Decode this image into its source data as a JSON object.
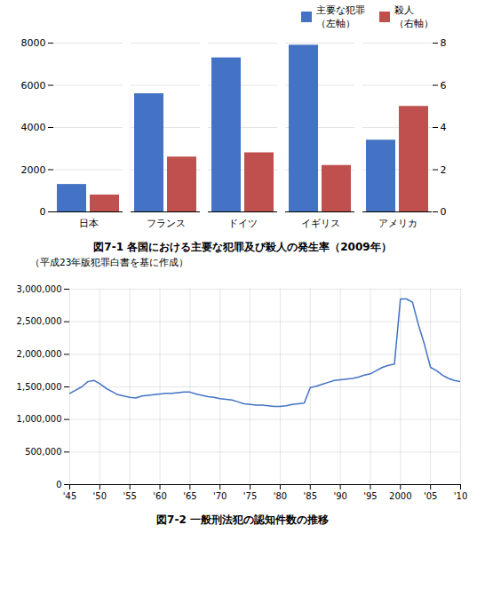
{
  "chart_data": [
    {
      "type": "bar",
      "title": "図7-1  各国における主要な犯罪及び殺人の発生率（2009年）",
      "subtitle": "（平成23年版犯罪白書を基に作成）",
      "categories": [
        "日本",
        "フランス",
        "ドイツ",
        "イギリス",
        "アメリカ"
      ],
      "series": [
        {
          "name": "主要な犯罪\n（左軸）",
          "color": "#4472C4",
          "values": [
            1300,
            5600,
            7300,
            7900,
            3400
          ]
        },
        {
          "name": "殺人\n（右軸）",
          "color": "#C0504D",
          "values": [
            0.8,
            2.6,
            2.8,
            2.2,
            5.0
          ],
          "axis": "y2"
        }
      ],
      "ylim": [
        0,
        8000
      ],
      "yticks": [
        0,
        2000,
        4000,
        6000,
        8000
      ],
      "y2lim": [
        0,
        8
      ],
      "y2ticks": [
        0,
        2,
        4,
        6,
        8
      ],
      "grid": true,
      "legend": "upper right"
    },
    {
      "type": "line",
      "title": "図7-2  一般刑法犯の認知件数の推移",
      "x": [
        1945,
        1946,
        1947,
        1948,
        1949,
        1950,
        1951,
        1952,
        1953,
        1954,
        1955,
        1956,
        1957,
        1958,
        1959,
        1960,
        1961,
        1962,
        1963,
        1964,
        1965,
        1966,
        1967,
        1968,
        1969,
        1970,
        1971,
        1972,
        1973,
        1974,
        1975,
        1976,
        1977,
        1978,
        1979,
        1980,
        1981,
        1982,
        1983,
        1984,
        1985,
        1986,
        1987,
        1988,
        1989,
        1990,
        1991,
        1992,
        1993,
        1994,
        1995,
        1996,
        1997,
        1998,
        1999,
        2000,
        2001,
        2002,
        2003,
        2004,
        2005,
        2006,
        2007,
        2008,
        2009,
        2010
      ],
      "values": [
        1400000,
        1450000,
        1500000,
        1580000,
        1600000,
        1550000,
        1480000,
        1430000,
        1380000,
        1360000,
        1340000,
        1330000,
        1360000,
        1370000,
        1380000,
        1390000,
        1400000,
        1400000,
        1410000,
        1420000,
        1420000,
        1390000,
        1370000,
        1350000,
        1340000,
        1320000,
        1310000,
        1300000,
        1270000,
        1240000,
        1230000,
        1220000,
        1220000,
        1210000,
        1200000,
        1200000,
        1210000,
        1230000,
        1240000,
        1250000,
        1490000,
        1510000,
        1540000,
        1570000,
        1600000,
        1610000,
        1620000,
        1630000,
        1650000,
        1680000,
        1700000,
        1750000,
        1800000,
        1830000,
        1850000,
        2850000,
        2850000,
        2800000,
        2450000,
        2150000,
        1800000,
        1750000,
        1680000,
        1630000,
        1600000,
        1580000
      ],
      "color": "#4472C4",
      "xlim": [
        1945,
        2010
      ],
      "xticks": [
        {
          "value": 1945,
          "label": "'45"
        },
        {
          "value": 1950,
          "label": "'50"
        },
        {
          "value": 1955,
          "label": "'55"
        },
        {
          "value": 1960,
          "label": "'60"
        },
        {
          "value": 1965,
          "label": "'65"
        },
        {
          "value": 1970,
          "label": "'70"
        },
        {
          "value": 1975,
          "label": "'75"
        },
        {
          "value": 1980,
          "label": "'80"
        },
        {
          "value": 1985,
          "label": "'85"
        },
        {
          "value": 1990,
          "label": "'90"
        },
        {
          "value": 1995,
          "label": "'95"
        },
        2000,
        {
          "value": 2005,
          "label": "'05"
        },
        {
          "value": 2010,
          "label": "'10"
        }
      ],
      "ylim": [
        0,
        3000000
      ],
      "yticks": [
        0,
        {
          "value": 500000,
          "label": "500,000"
        },
        {
          "value": 1000000,
          "label": "1,000,000"
        },
        {
          "value": 1500000,
          "label": "1,500,000"
        },
        {
          "value": 2000000,
          "label": "2,000,000"
        },
        {
          "value": 2500000,
          "label": "2,500,000"
        },
        {
          "value": 3000000,
          "label": "3,000,000"
        }
      ],
      "grid": true
    }
  ]
}
